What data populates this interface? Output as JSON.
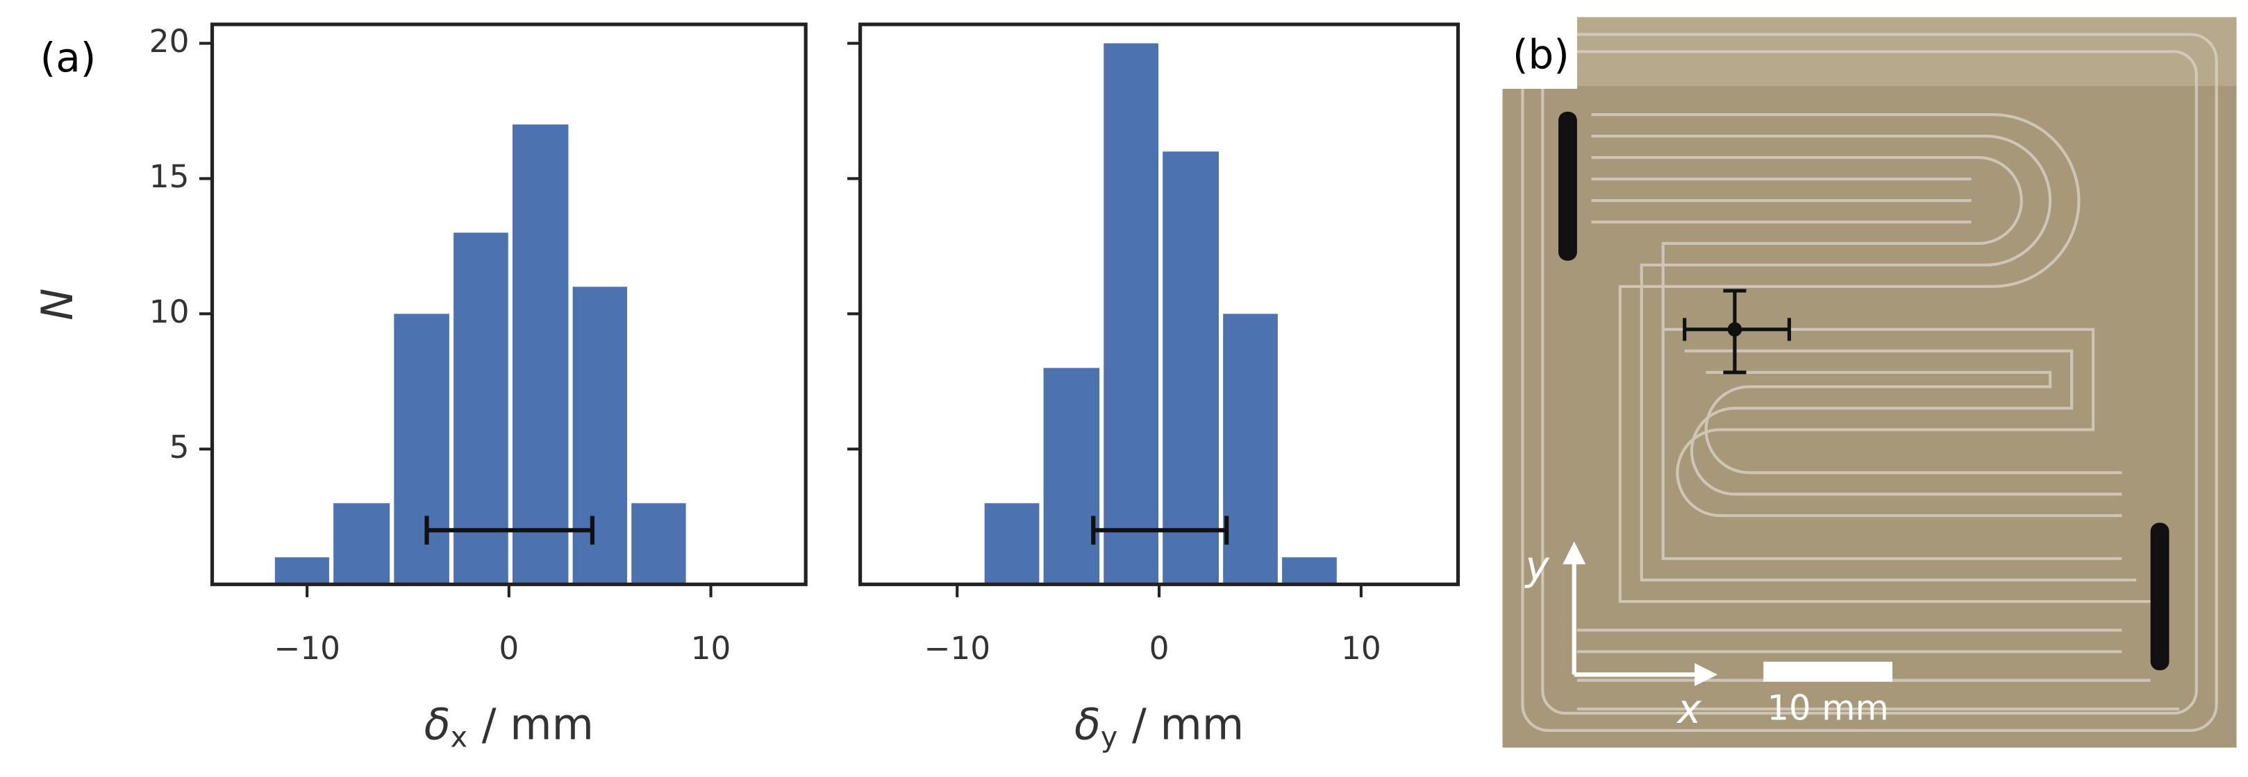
{
  "panel_a_label": "(a)",
  "panel_b": {
    "label": "(b)",
    "axis_x": "x",
    "axis_y": "y",
    "scale_bar": "10 mm"
  },
  "chart_data": [
    {
      "type": "histogram",
      "color": "#4c72b0",
      "bins": [
        -11.7,
        -8.8,
        -5.8,
        -2.85,
        0.07,
        3.05,
        5.96,
        8.87
      ],
      "values": [
        1,
        3,
        10,
        13,
        17,
        11,
        3
      ],
      "error_bar": {
        "center": 0.03,
        "error": 4.1,
        "y": 2
      },
      "xlim": [
        -14.7,
        14.7
      ],
      "ylim": [
        0,
        20.7
      ],
      "xticks": [
        {
          "value": -10,
          "label": "−10"
        },
        0,
        10
      ],
      "yticks": [
        5,
        10,
        15,
        20
      ],
      "show_ytick_labels": true,
      "y_label": "N",
      "x_label": {
        "symbol": "δ",
        "subscript": "x",
        "unit": "/ mm"
      }
    },
    {
      "type": "histogram",
      "color": "#4c72b0",
      "bins": [
        -8.75,
        -5.83,
        -2.85,
        0.07,
        3.06,
        5.98,
        8.9
      ],
      "values": [
        3,
        8,
        20,
        16,
        10,
        1
      ],
      "error_bar": {
        "center": 0.04,
        "error": 3.3,
        "y": 2
      },
      "xlim": [
        -14.8,
        14.8
      ],
      "ylim": [
        0,
        20.7
      ],
      "xticks": [
        {
          "value": -10,
          "label": "−10"
        },
        0,
        10
      ],
      "yticks": [
        5,
        10,
        15,
        20
      ],
      "show_ytick_labels": false,
      "x_label": {
        "symbol": "δ",
        "subscript": "y",
        "unit": "/ mm"
      }
    }
  ]
}
